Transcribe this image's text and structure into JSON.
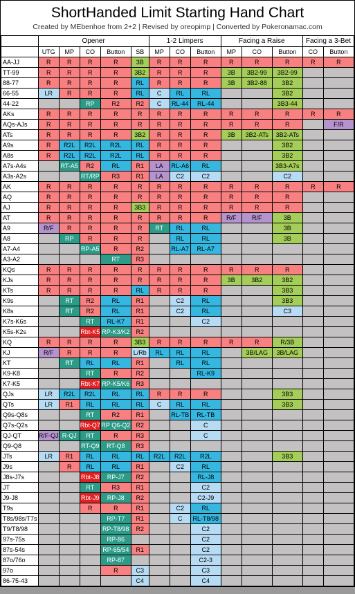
{
  "title": "ShortHanded Limit Starting Hand Chart",
  "subtitle": "Created by MEbenhoe from 2+2  |  Revised by oreopimp  |  Converted by Pokeronamac.com",
  "colors": {
    "R": "#f88081",
    "LR": "#b8dbf4",
    "RL": "#36b7df",
    "C": "#b8dbf4",
    "RT": "#2d9b88",
    "RP": "#2d9b88",
    "R2L": "#36b7df",
    "R2": "#f88081",
    "R1": "#f88081",
    "R3": "#f88081",
    "RL-K7": "#36b7df",
    "3B": "#a5cd5a",
    "3B2": "#a5cd5a",
    "3B3": "#a5cd5a",
    "3B2-99": "#a5cd5a",
    "3B2-88": "#a5cd5a",
    "3B2-ATs": "#a5cd5a",
    "3B3-A7s": "#a5cd5a",
    "3B3-44": "#a5cd5a",
    "C2": "#b8dbf4",
    "C3": "#b8dbf4",
    "C4": "#b8dbf4",
    "C2-3": "#b8dbf4",
    "C2-J9": "#b8dbf4",
    "LA": "#b593cd",
    "R/F": "#b593cd",
    "F/R": "#b593cd",
    "RT-A5": "#2d9b88",
    "RP-A5": "#2d9b88",
    "RT/RP": "#2d9b88",
    "R1/RP": "#f88081",
    "Rbt-K5": "#e02022",
    "Rbt-K7": "#e02022",
    "Rbt-Q7": "#e02022",
    "Rbt-J8": "#e02022",
    "Rbt-J9": "#e02022",
    "R-QJ": "#2d9b88",
    "RP-K3/K2": "#2d9b88",
    "RP-K5/K6": "#2d9b88",
    "RP Q6-Q2": "#2d9b88",
    "RT-Q9": "#2d9b88",
    "RT-Q8": "#2d9b88",
    "RP-J7": "#2d9b88",
    "RP-J8": "#2d9b88",
    "RP-T7": "#2d9b88",
    "RP-T8/98": "#2d9b88",
    "RP-86": "#2d9b88",
    "RP-65/54": "#2d9b88",
    "RP-87": "#2d9b88",
    "RL-A6": "#36b7df",
    "RL-A7": "#36b7df",
    "RL-44": "#36b7df",
    "RL-K9": "#36b7df",
    "RL-TB": "#36b7df",
    "RL-J8": "#36b7df",
    "RL-T8/98": "#36b7df",
    "R/3B": "#a5cd5a",
    "3B/LAG": "#a5cd5a",
    "L/Rb": "#b8dbf4",
    "empty": "#c3c1c1",
    "white": "#ffffff"
  },
  "groups": [
    {
      "label": "",
      "span": 1
    },
    {
      "label": "Opener",
      "span": 5
    },
    {
      "label": "1-2 Limpers",
      "span": 3
    },
    {
      "label": "Facing a Raise",
      "span": 3
    },
    {
      "label": "Facing a 3-Bet",
      "span": 2
    }
  ],
  "cols": [
    "",
    "UTG",
    "MP",
    "CO",
    "Button",
    "SB",
    "MP",
    "CO",
    "Button",
    "MP",
    "CO",
    "Button",
    "CO",
    "Button"
  ],
  "rows": [
    {
      "h": "AA-JJ",
      "c": [
        "R",
        "R",
        "R",
        "R",
        "3B",
        "R",
        "R",
        "R",
        "R",
        "R",
        "R",
        "R",
        "R"
      ]
    },
    {
      "h": "TT-99",
      "c": [
        "R",
        "R",
        "R",
        "R",
        "3B2",
        "R",
        "R",
        "R",
        "3B",
        "3B2-99",
        "3B2-99",
        "",
        ""
      ]
    },
    {
      "h": "88-77",
      "c": [
        "R",
        "R",
        "R",
        "R",
        "RL",
        "R",
        "R",
        "R",
        "3B",
        "3B2-88",
        "3B2",
        "",
        ""
      ]
    },
    {
      "h": "66-55",
      "c": [
        "LR",
        "R",
        "R",
        "R",
        "RL",
        "C",
        "RL",
        "RL",
        "",
        "",
        "3B2",
        "",
        ""
      ]
    },
    {
      "h": "44-22",
      "c": [
        "",
        "",
        "RP",
        "R2",
        "R2",
        "C",
        "RL-44",
        "RL-44",
        "",
        "",
        "3B3-44",
        "",
        ""
      ]
    },
    {
      "h": "AKs",
      "c": [
        "R",
        "R",
        "R",
        "R",
        "R",
        "R",
        "R",
        "R",
        "R",
        "R",
        "R",
        "R",
        "R"
      ]
    },
    {
      "h": "AQs-AJs",
      "c": [
        "R",
        "R",
        "R",
        "R",
        "R",
        "R",
        "R",
        "R",
        "R",
        "R",
        "R",
        "",
        "F/R"
      ]
    },
    {
      "h": "ATs",
      "c": [
        "R",
        "R",
        "R",
        "R",
        "3B2",
        "R",
        "R",
        "R",
        "3B",
        "3B2-ATs",
        "3B2-ATs",
        "",
        ""
      ]
    },
    {
      "h": "A9s",
      "c": [
        "R",
        "R2L",
        "R2L",
        "R2L",
        "RL",
        "R",
        "R",
        "R",
        "",
        "",
        "3B2",
        "",
        ""
      ]
    },
    {
      "h": "A8s",
      "c": [
        "R",
        "R2L",
        "R2L",
        "R2L",
        "RL",
        "R",
        "R",
        "R",
        "",
        "",
        "3B2",
        "",
        ""
      ]
    },
    {
      "h": "A7s-A4s",
      "c": [
        "",
        "RT-A5",
        "R2",
        "RL",
        "R1",
        "LA",
        "RL-A6",
        "RL",
        "",
        "",
        "3B3-A7s",
        "",
        ""
      ]
    },
    {
      "h": "A3s-A2s",
      "c": [
        "",
        "",
        "RT/RP",
        "R3",
        "R1",
        "LA",
        "C2",
        "C2",
        "",
        "",
        "C2",
        "",
        ""
      ]
    },
    {
      "h": "AK",
      "c": [
        "R",
        "R",
        "R",
        "R",
        "R",
        "R",
        "R",
        "R",
        "R",
        "R",
        "R",
        "R",
        "R"
      ]
    },
    {
      "h": "AQ",
      "c": [
        "R",
        "R",
        "R",
        "R",
        "R",
        "R",
        "R",
        "R",
        "R",
        "R",
        "R",
        "",
        ""
      ]
    },
    {
      "h": "AJ",
      "c": [
        "R",
        "R",
        "R",
        "R",
        "3B3",
        "R",
        "R",
        "R",
        "R",
        "R",
        "R",
        "",
        ""
      ]
    },
    {
      "h": "AT",
      "c": [
        "R",
        "R",
        "R",
        "R",
        "R",
        "R",
        "R",
        "R",
        "R/F",
        "R/F",
        "3B",
        "",
        ""
      ]
    },
    {
      "h": "A9",
      "c": [
        "R/F",
        "R",
        "R",
        "R",
        "R",
        "RT",
        "RL",
        "RL",
        "",
        "",
        "3B",
        "",
        ""
      ]
    },
    {
      "h": "A8",
      "c": [
        "",
        "RP",
        "R",
        "R",
        "R",
        "",
        "RL",
        "RL",
        "",
        "",
        "3B",
        "",
        ""
      ]
    },
    {
      "h": "A7-A4",
      "c": [
        "",
        "",
        "RP-A5",
        "R",
        "R2",
        "",
        "RL-A7",
        "RL-A7",
        "",
        "",
        "",
        "",
        ""
      ]
    },
    {
      "h": "A3-A2",
      "c": [
        "",
        "",
        "",
        "RT",
        "R3",
        "",
        "",
        "",
        "",
        "",
        "",
        "",
        ""
      ]
    },
    {
      "h": "KQs",
      "c": [
        "R",
        "R",
        "R",
        "R",
        "R",
        "R",
        "R",
        "R",
        "R",
        "R",
        "R",
        "",
        ""
      ]
    },
    {
      "h": "KJs",
      "c": [
        "R",
        "R",
        "R",
        "R",
        "R",
        "R",
        "R",
        "R",
        "3B",
        "3B2",
        "3B2",
        "",
        ""
      ]
    },
    {
      "h": "KTs",
      "c": [
        "R",
        "R",
        "R",
        "R",
        "RL",
        "R",
        "R",
        "R",
        "",
        "",
        "3B3",
        "",
        ""
      ]
    },
    {
      "h": "K9s",
      "c": [
        "",
        "RT",
        "R2",
        "RL",
        "R1",
        "",
        "C2",
        "RL",
        "",
        "",
        "3B3",
        "",
        ""
      ]
    },
    {
      "h": "K8s",
      "c": [
        "",
        "RT",
        "R2",
        "RL",
        "R1",
        "",
        "C2",
        "RL",
        "",
        "",
        "C3",
        "",
        ""
      ]
    },
    {
      "h": "K7s-K6s",
      "c": [
        "",
        "",
        "RT",
        "RL-K7",
        "R1",
        "",
        "",
        "C2",
        "",
        "",
        "",
        "",
        ""
      ]
    },
    {
      "h": "K5s-K2s",
      "c": [
        "",
        "",
        "Rbt-K5",
        "RP-K3/K2",
        "R2",
        "",
        "",
        "",
        "",
        "",
        "",
        "",
        ""
      ]
    },
    {
      "h": "KQ",
      "c": [
        "R",
        "R",
        "R",
        "R",
        "3B3",
        "R",
        "R",
        "R",
        "R",
        "R",
        "R/3B",
        "",
        ""
      ]
    },
    {
      "h": "KJ",
      "c": [
        "R/F",
        "R",
        "R",
        "R",
        "L/Rb",
        "RL",
        "RL",
        "RL",
        "",
        "3B/LAG",
        "3B/LAG",
        "",
        ""
      ]
    },
    {
      "h": "KT",
      "c": [
        "",
        "RT",
        "RL",
        "RL",
        "R1",
        "",
        "RL",
        "RL",
        "",
        "",
        "",
        "",
        ""
      ]
    },
    {
      "h": "K9-K8",
      "c": [
        "",
        "",
        "RT",
        "R",
        "R2",
        "",
        "",
        "RL-K9",
        "",
        "",
        "",
        "",
        ""
      ]
    },
    {
      "h": "K7-K5",
      "c": [
        "",
        "",
        "Rbt-K7",
        "RP-K5/K6",
        "R3",
        "",
        "",
        "",
        "",
        "",
        "",
        "",
        ""
      ]
    },
    {
      "h": "QJs",
      "c": [
        "LR",
        "R2L",
        "R2L",
        "RL",
        "RL",
        "R",
        "R",
        "R",
        "",
        "",
        "3B3",
        "",
        ""
      ]
    },
    {
      "h": "QTs",
      "c": [
        "LR",
        "R1",
        "RL",
        "RL",
        "RL",
        "C",
        "RL",
        "RL",
        "",
        "",
        "3B3",
        "",
        ""
      ]
    },
    {
      "h": "Q9s-Q8s",
      "c": [
        "",
        "",
        "RT",
        "R2",
        "R1",
        "",
        "RL-TB",
        "RL-TB",
        "",
        "",
        "",
        "",
        ""
      ]
    },
    {
      "h": "Q7s-Q2s",
      "c": [
        "",
        "",
        "Rbt-Q7",
        "RP Q6-Q2",
        "R2",
        "",
        "",
        "C",
        "",
        "",
        "",
        "",
        ""
      ]
    },
    {
      "h": "QJ-QT",
      "c": [
        "R/F-QJ",
        "R-QJ",
        "RT",
        "R",
        "R3",
        "",
        "",
        "C",
        "",
        "",
        "",
        "",
        ""
      ]
    },
    {
      "h": "Q9-Q8",
      "c": [
        "",
        "",
        "RT-Q9",
        "RT-Q8",
        "R3",
        "",
        "",
        "",
        "",
        "",
        "",
        "",
        ""
      ]
    },
    {
      "h": "JTs",
      "c": [
        "LR",
        "R1",
        "RL",
        "RL",
        "RL",
        "R2L",
        "R2L",
        "R2L",
        "",
        "",
        "3B3",
        "",
        ""
      ]
    },
    {
      "h": "J9s",
      "c": [
        "",
        "R",
        "RL",
        "RL",
        "R1",
        "",
        "C2",
        "RL",
        "",
        "",
        "",
        "",
        ""
      ]
    },
    {
      "h": "J8s-J7s",
      "c": [
        "",
        "",
        "Rbt-J8",
        "RP-J7",
        "R2",
        "",
        "",
        "RL-J8",
        "",
        "",
        "",
        "",
        ""
      ]
    },
    {
      "h": "JT",
      "c": [
        "",
        "",
        "RT",
        "R3",
        "R1",
        "",
        "",
        "C2",
        "",
        "",
        "",
        "",
        ""
      ]
    },
    {
      "h": "J9-J8",
      "c": [
        "",
        "",
        "Rbt-J9",
        "RP-J8",
        "R2",
        "",
        "",
        "C2-J9",
        "",
        "",
        "",
        "",
        ""
      ]
    },
    {
      "h": "T9s",
      "c": [
        "",
        "",
        "R",
        "R",
        "R1",
        "",
        "C2",
        "RL",
        "",
        "",
        "",
        "",
        ""
      ]
    },
    {
      "h": "T8s/98s/T7s",
      "c": [
        "",
        "",
        "",
        "RP-T7",
        "R1",
        "",
        "C",
        "RL-T8/98",
        "",
        "",
        "",
        "",
        ""
      ]
    },
    {
      "h": "T9/T8/98",
      "c": [
        "",
        "",
        "",
        "RP-T8/98",
        "R2",
        "",
        "",
        "C2",
        "",
        "",
        "",
        "",
        ""
      ]
    },
    {
      "h": "97s-75s",
      "c": [
        "",
        "",
        "",
        "RP-86",
        "",
        "",
        "",
        "C2",
        "",
        "",
        "",
        "",
        ""
      ]
    },
    {
      "h": "87s-54s",
      "c": [
        "",
        "",
        "",
        "RP-65/54",
        "R1",
        "",
        "",
        "C2",
        "",
        "",
        "",
        "",
        ""
      ]
    },
    {
      "h": "87o/76o",
      "c": [
        "",
        "",
        "",
        "RP-87",
        "",
        "",
        "",
        "C2-3",
        "",
        "",
        "",
        "",
        ""
      ]
    },
    {
      "h": "97o",
      "c": [
        "",
        "",
        "",
        "R",
        "C3",
        "",
        "",
        "C3",
        "",
        "",
        "",
        "",
        ""
      ]
    },
    {
      "h": "86-75-43",
      "c": [
        "",
        "",
        "",
        "",
        "C4",
        "",
        "",
        "C4",
        "",
        "",
        "",
        "",
        ""
      ]
    }
  ]
}
